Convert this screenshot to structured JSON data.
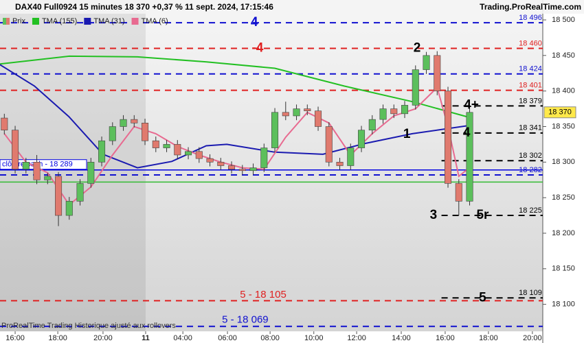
{
  "chart_data": {
    "type": "candlestick",
    "title": "DAX40 Full0924 15 minutes 18 370 +0,37 % 11 sept. 2024, 17:15:46",
    "source": "Trading.ProRealTime.com",
    "footer": "ProRealTime Trading  Historique ajusté aux rollovers",
    "price_name": "Prix",
    "up_color": "#5cbf5c",
    "down_color": "#e07a6e",
    "x": [
      -0.5,
      0,
      0.5,
      1,
      1.5,
      2,
      2.5,
      3,
      3.5,
      4,
      4.5,
      5,
      5.5,
      6,
      6.5,
      7,
      7.5,
      8,
      8.5,
      9,
      9.5,
      10,
      10.5,
      11,
      11.5,
      12,
      12.5,
      13,
      13.5,
      14,
      14.5,
      15,
      15.5,
      16,
      16.5,
      17,
      17.5,
      18,
      18.5,
      19,
      19.5,
      20,
      20.5,
      21
    ],
    "open": [
      18362,
      18345,
      18290,
      18300,
      18275,
      18280,
      18225,
      18245,
      18270,
      18300,
      18330,
      18350,
      18360,
      18355,
      18330,
      18320,
      18325,
      18310,
      18315,
      18305,
      18300,
      18295,
      18290,
      18288,
      18292,
      18320,
      18370,
      18365,
      18375,
      18372,
      18350,
      18300,
      18295,
      18320,
      18345,
      18360,
      18375,
      18368,
      18380,
      18430,
      18450,
      18400,
      18270,
      18245
    ],
    "high": [
      18368,
      18351,
      18306,
      18310,
      18285,
      18286,
      18251,
      18276,
      18306,
      18336,
      18356,
      18366,
      18366,
      18361,
      18336,
      18331,
      18331,
      18321,
      18321,
      18311,
      18306,
      18301,
      18296,
      18298,
      18326,
      18376,
      18385,
      18381,
      18381,
      18378,
      18356,
      18306,
      18326,
      18351,
      18366,
      18381,
      18381,
      18386,
      18436,
      18455,
      18456,
      18406,
      18276,
      18376
    ],
    "low": [
      18339,
      18284,
      18284,
      18269,
      18269,
      18210,
      18219,
      18239,
      18264,
      18294,
      18324,
      18344,
      18349,
      18324,
      18314,
      18314,
      18304,
      18304,
      18299,
      18294,
      18289,
      18284,
      18282,
      18282,
      18286,
      18314,
      18359,
      18359,
      18366,
      18344,
      18294,
      18289,
      18289,
      18314,
      18339,
      18354,
      18362,
      18362,
      18374,
      18424,
      18394,
      18264,
      18225,
      18239
    ],
    "close": [
      18345,
      18290,
      18300,
      18275,
      18280,
      18225,
      18245,
      18270,
      18300,
      18330,
      18350,
      18360,
      18355,
      18330,
      18320,
      18325,
      18310,
      18315,
      18305,
      18300,
      18295,
      18290,
      18288,
      18292,
      18320,
      18370,
      18365,
      18375,
      18372,
      18350,
      18300,
      18295,
      18320,
      18345,
      18360,
      18375,
      18368,
      18380,
      18430,
      18450,
      18400,
      18270,
      18245,
      18370
    ],
    "series": [
      {
        "name": "TMA (155)",
        "color": "#22c022",
        "x": [
          -0.7,
          2.5,
          5.65,
          8.85,
          12,
          15.2,
          18.35,
          21.1
        ],
        "values": [
          18438,
          18449,
          18448,
          18441,
          18432,
          18407,
          18385,
          18362
        ]
      },
      {
        "name": "TMA (31)",
        "color": "#1a1ab0",
        "x": [
          -0.7,
          0.89,
          2.48,
          4.06,
          5.65,
          7.24,
          8.83,
          9.78,
          12,
          14.22,
          16.13,
          18.35,
          21.1
        ],
        "values": [
          18437,
          18407,
          18364,
          18311,
          18292,
          18301,
          18323,
          18325,
          18314,
          18311,
          18326,
          18340,
          18352
        ]
      },
      {
        "name": "TMA (6)",
        "color": "#e86a90",
        "x": [
          -0.5,
          0.5,
          1.5,
          2.5,
          3.5,
          4.5,
          5.5,
          6.5,
          7.5,
          8.5,
          9.5,
          10.5,
          11.5,
          12.5,
          13.5,
          14.5,
          15.5,
          16.5,
          17.5,
          18.5,
          19.5,
          20,
          20.5,
          21.1
        ],
        "values": [
          18340,
          18300,
          18285,
          18240,
          18265,
          18310,
          18350,
          18340,
          18322,
          18310,
          18300,
          18292,
          18290,
          18335,
          18370,
          18355,
          18310,
          18340,
          18365,
          18375,
          18405,
          18350,
          18280,
          18295
        ]
      }
    ],
    "levels": [
      {
        "value": 18496,
        "label": "18 496",
        "color": "#1010d0"
      },
      {
        "value": 18460,
        "label": "18 460",
        "color": "#e02020"
      },
      {
        "value": 18424,
        "label": "18 424",
        "color": "#1010d0"
      },
      {
        "value": 18401,
        "label": "18 401",
        "color": "#e02020"
      },
      {
        "value": 18379,
        "label": "18 379",
        "color": "#000000",
        "from": 19.7
      },
      {
        "value": 18341,
        "label": "18 341",
        "color": "#000000",
        "from": 19.7
      },
      {
        "value": 18302,
        "label": "18 302",
        "color": "#000000",
        "from": 19.7
      },
      {
        "value": 18282,
        "label": "18 282",
        "color": "#1010d0"
      },
      {
        "value": 18225,
        "label": "18 225",
        "color": "#000000",
        "from": 19.7
      },
      {
        "value": 18109,
        "label": "18 109",
        "color": "#000000",
        "from": 19.7
      },
      {
        "value": 18105,
        "color": "#e02020"
      },
      {
        "value": 18069,
        "color": "#1010d0"
      }
    ],
    "lines": [
      {
        "value": 18289,
        "color": "#0000e0",
        "label": "clôture cash -  18 289"
      },
      {
        "value": 18272,
        "color": "#33bb33"
      }
    ],
    "last": {
      "value": 18370,
      "label": "18 370"
    },
    "annotations": [
      {
        "text": "4",
        "x": 11.05,
        "y": 18496,
        "color": "#1010d0"
      },
      {
        "text": "-4",
        "x": 11.2,
        "y": 18460,
        "color": "#e02020"
      },
      {
        "text": "2",
        "x": 18.57,
        "y": 18460,
        "color": "#000000"
      },
      {
        "text": "4+",
        "x": 21.08,
        "y": 18380,
        "color": "#000000"
      },
      {
        "text": "1",
        "x": 18.1,
        "y": 18339,
        "color": "#000000"
      },
      {
        "text": "4",
        "x": 20.86,
        "y": 18341,
        "color": "#000000"
      },
      {
        "text": "3",
        "x": 19.33,
        "y": 18225,
        "color": "#000000"
      },
      {
        "text": "5r",
        "x": 21.6,
        "y": 18225,
        "color": "#000000"
      },
      {
        "text": "5",
        "x": 21.6,
        "y": 18109,
        "color": "#000000"
      },
      {
        "text": "5 -  18 105",
        "x": 11.46,
        "y": 18113,
        "color": "#e02020"
      },
      {
        "text": "5 - 18 069",
        "x": 10.63,
        "y": 18078,
        "color": "#1010d0"
      }
    ],
    "shade_until": 6.03,
    "xlim": [
      -0.7,
      24.38
    ],
    "xticks": [
      {
        "value": 0,
        "label": "16:00"
      },
      {
        "value": 1.97,
        "label": "18:00"
      },
      {
        "value": 4.06,
        "label": "20:00"
      },
      {
        "value": 6.03,
        "label": "11"
      },
      {
        "value": 7.75,
        "label": "04:00"
      },
      {
        "value": 9.81,
        "label": "06:00"
      },
      {
        "value": 11.78,
        "label": "08:00"
      },
      {
        "value": 13.8,
        "label": "10:00"
      },
      {
        "value": 15.78,
        "label": "12:00"
      },
      {
        "value": 17.84,
        "label": "14:00"
      },
      {
        "value": 19.87,
        "label": "16:00"
      },
      {
        "value": 21.87,
        "label": "18:00"
      },
      {
        "value": 23.9,
        "label": "20:00"
      }
    ],
    "ylim": [
      18062,
      18528
    ],
    "yticks": [
      {
        "value": 18100,
        "label": "18 100"
      },
      {
        "value": 18150,
        "label": "18 150"
      },
      {
        "value": 18200,
        "label": "18 200"
      },
      {
        "value": 18250,
        "label": "18 250"
      },
      {
        "value": 18300,
        "label": "18 300"
      },
      {
        "value": 18350,
        "label": "18 350"
      },
      {
        "value": 18400,
        "label": "18 400"
      },
      {
        "value": 18450,
        "label": "18 450"
      },
      {
        "value": 18500,
        "label": "18 500"
      }
    ]
  }
}
